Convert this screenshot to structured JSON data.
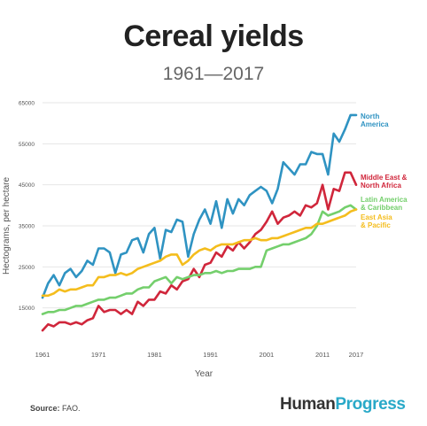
{
  "header": {
    "title": "Cereal yields",
    "subtitle": "1961—2017"
  },
  "footer": {
    "source_label": "Source:",
    "source_value": "FAO.",
    "brand_part1": "Human",
    "brand_part2": "Progress"
  },
  "colors": {
    "north_america": "#2f93c2",
    "middle_east": "#d0263b",
    "latin_america": "#74cf6c",
    "east_asia": "#f4bd1d",
    "grid": "#e6e6e6",
    "axis_text": "#555555"
  },
  "chart_data": {
    "type": "line",
    "title": "Cereal yields",
    "subtitle": "1961—2017",
    "xlabel": "Year",
    "ylabel": "Hectograms, per hectare",
    "xlim": [
      1961,
      2017
    ],
    "ylim": [
      5000,
      65000
    ],
    "x_ticks": [
      "1961",
      "1971",
      "1981",
      "1991",
      "2001",
      "2011",
      "2017"
    ],
    "y_ticks": [
      "65000",
      "55000",
      "45000",
      "35000",
      "25000",
      "15000"
    ],
    "grid": true,
    "x": [
      1961,
      1962,
      1963,
      1964,
      1965,
      1966,
      1967,
      1968,
      1969,
      1970,
      1971,
      1972,
      1973,
      1974,
      1975,
      1976,
      1977,
      1978,
      1979,
      1980,
      1981,
      1982,
      1983,
      1984,
      1985,
      1986,
      1987,
      1988,
      1989,
      1990,
      1991,
      1992,
      1993,
      1994,
      1995,
      1996,
      1997,
      1998,
      1999,
      2000,
      2001,
      2002,
      2003,
      2004,
      2005,
      2006,
      2007,
      2008,
      2009,
      2010,
      2011,
      2012,
      2013,
      2014,
      2015,
      2016,
      2017
    ],
    "series": [
      {
        "name": "North America",
        "label_lines": [
          "North",
          "America"
        ],
        "color": "north_america",
        "values": [
          17500,
          21000,
          23000,
          20500,
          23500,
          24500,
          22500,
          24000,
          26500,
          25500,
          29500,
          29500,
          28500,
          23500,
          28000,
          28500,
          31500,
          32000,
          28500,
          33000,
          34500,
          27000,
          34000,
          33500,
          36500,
          36000,
          27500,
          33000,
          36500,
          39000,
          35500,
          41000,
          34500,
          41500,
          38000,
          41500,
          40000,
          42500,
          43500,
          44500,
          43500,
          40500,
          44000,
          50500,
          49000,
          47500,
          50000,
          50000,
          53000,
          52500,
          52500,
          47500,
          57500,
          55500,
          58500,
          62000,
          62000
        ]
      },
      {
        "name": "Middle East & North Africa",
        "label_lines": [
          "Middle East &",
          "North Africa"
        ],
        "color": "middle_east",
        "values": [
          9500,
          11000,
          10500,
          11500,
          11500,
          11000,
          11500,
          11000,
          12000,
          12500,
          15500,
          14000,
          14500,
          14500,
          13500,
          14500,
          13500,
          16500,
          15500,
          17000,
          17000,
          19000,
          18500,
          20500,
          19500,
          21500,
          22000,
          24500,
          22500,
          25500,
          26000,
          28500,
          27500,
          30000,
          29000,
          31000,
          29500,
          31000,
          33000,
          34000,
          36000,
          38500,
          35500,
          37000,
          37500,
          38500,
          37500,
          40000,
          39500,
          40500,
          45000,
          39000,
          44000,
          43500,
          48000,
          48000,
          45000
        ]
      },
      {
        "name": "Latin America & Caribbean",
        "label_lines": [
          "Latin America",
          "& Caribbean"
        ],
        "color": "latin_america",
        "values": [
          13500,
          14000,
          14000,
          14500,
          14500,
          15000,
          15500,
          15500,
          16000,
          16500,
          17000,
          17000,
          17500,
          17500,
          18000,
          18500,
          18500,
          19500,
          20000,
          20000,
          21500,
          22000,
          22500,
          21000,
          22500,
          22000,
          22500,
          23000,
          23000,
          23500,
          23500,
          24000,
          23500,
          24000,
          24000,
          24500,
          24500,
          24500,
          25000,
          25000,
          29000,
          29500,
          30000,
          30500,
          30500,
          31000,
          31500,
          32000,
          33000,
          35000,
          38500,
          37500,
          38000,
          38500,
          39500,
          40000,
          39000
        ]
      },
      {
        "name": "East Asia & Pacific",
        "label_lines": [
          "East Asia",
          "& Pacific"
        ],
        "color": "east_asia",
        "values": [
          18000,
          18000,
          18500,
          19500,
          19000,
          19500,
          19500,
          20000,
          20500,
          20500,
          22500,
          22500,
          23000,
          23000,
          23500,
          23000,
          23500,
          24500,
          25000,
          25500,
          26000,
          26500,
          27500,
          28000,
          28000,
          25500,
          26500,
          28000,
          29000,
          29500,
          29000,
          30000,
          30500,
          30500,
          30500,
          31000,
          31500,
          31500,
          32000,
          31500,
          31500,
          32000,
          32000,
          32500,
          33000,
          33500,
          34000,
          34500,
          34500,
          35500,
          35500,
          36000,
          36500,
          37000,
          37500,
          38500,
          39000
        ]
      }
    ]
  }
}
